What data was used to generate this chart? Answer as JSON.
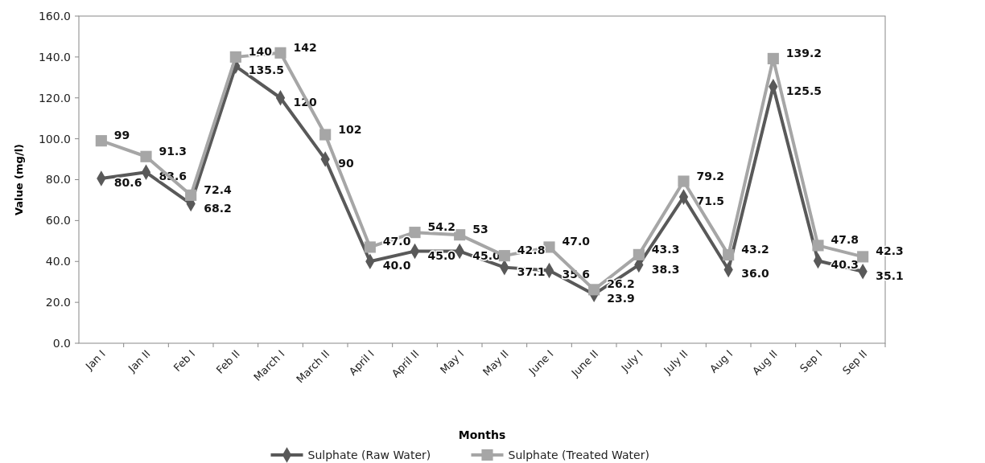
{
  "chart_data": {
    "type": "line",
    "xlabel": "Months",
    "ylabel": "Value (mg/l)",
    "categories": [
      "Jan I",
      "Jan II",
      "Feb I",
      "Feb II",
      "March I",
      "March II",
      "April I",
      "April II",
      "May I",
      "May II",
      "June I",
      "June II",
      "July I",
      "July II",
      "Aug I",
      "Aug II",
      "Sep I",
      "Sep II"
    ],
    "ylim": [
      0,
      160
    ],
    "yticks": [
      {
        "value": 0,
        "label": "0.0"
      },
      {
        "value": 20,
        "label": "20.0"
      },
      {
        "value": 40,
        "label": "40.0"
      },
      {
        "value": 60,
        "label": "60.0"
      },
      {
        "value": 80,
        "label": "80.0"
      },
      {
        "value": 100,
        "label": "100.0"
      },
      {
        "value": 120,
        "label": "120.0"
      },
      {
        "value": 140,
        "label": "140.0"
      },
      {
        "value": 160,
        "label": "160.0"
      }
    ],
    "grid": false,
    "legend": "bottom",
    "series": [
      {
        "name": "Sulphate  (Raw Water)",
        "color": "#595959",
        "marker": "diamond",
        "values": [
          80.6,
          83.6,
          68.2,
          135.5,
          120,
          90,
          40.0,
          45.0,
          45.0,
          37.1,
          35.6,
          23.9,
          38.3,
          71.5,
          36.0,
          125.5,
          40.3,
          35.1
        ],
        "value_labels": [
          "80.6",
          "83.6",
          "68.2",
          "135.5",
          "120",
          "90",
          "40.0",
          "45.0",
          "45.0",
          "37.1",
          "35.6",
          "23.9",
          "38.3",
          "71.5",
          "36.0",
          "125.5",
          "40.3",
          "35.1"
        ]
      },
      {
        "name": "Sulphate (Treated Water)",
        "color": "#a6a6a6",
        "marker": "square",
        "values": [
          99,
          91.3,
          72.4,
          140,
          142,
          102,
          47.0,
          54.2,
          53,
          42.8,
          47.0,
          26.2,
          43.3,
          79.2,
          43.2,
          139.2,
          47.8,
          42.3
        ],
        "value_labels": [
          "99",
          "91.3",
          "72.4",
          "140",
          "142",
          "102",
          "47.0",
          "54.2",
          "53",
          "42.8",
          "47.0",
          "26.2",
          "43.3",
          "79.2",
          "43.2",
          "139.2",
          "47.8",
          "42.3"
        ]
      }
    ]
  }
}
